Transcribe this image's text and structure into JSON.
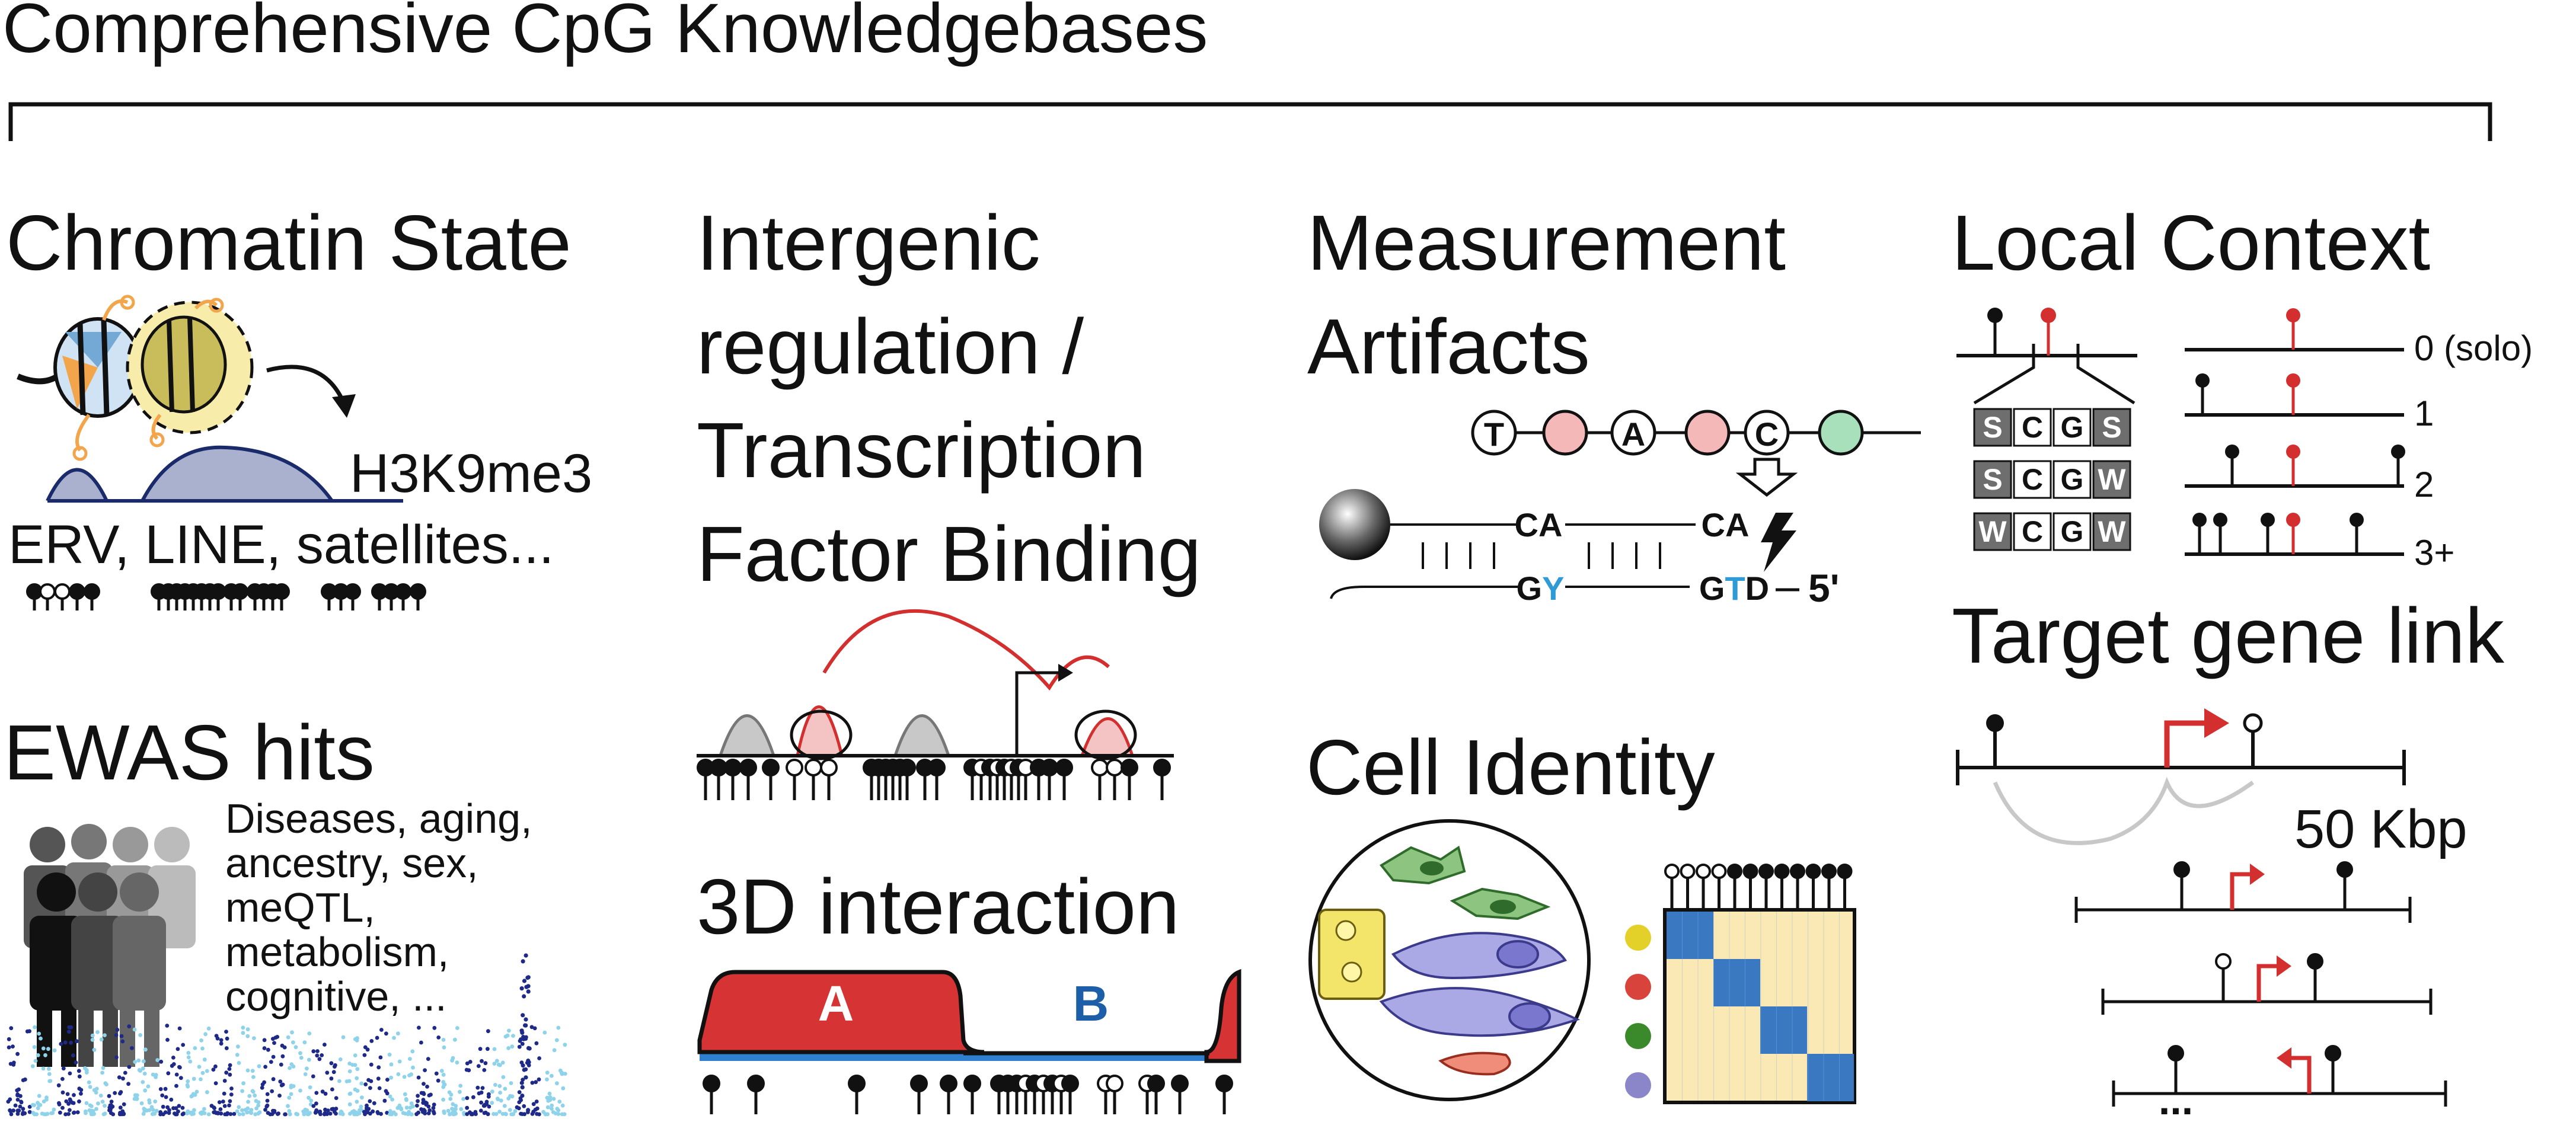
{
  "title": "Comprehensive CpG Knowledgebases",
  "sections": {
    "chromatin_state": {
      "title": "Chromatin State",
      "mark_label": "H3K9me3",
      "elements_label": "ERV, LINE, satellites..."
    },
    "ewas": {
      "title": "EWAS hits",
      "traits": [
        "Diseases, aging,",
        "ancestry, sex,",
        "meQTL,",
        "metabolism,",
        "cognitive, ..."
      ]
    },
    "intergenic": {
      "title_lines": [
        "Intergenic",
        "regulation /",
        "Transcription",
        "Factor Binding"
      ]
    },
    "interaction_3d": {
      "title": "3D interaction",
      "compartment_a": "A",
      "compartment_b": "B"
    },
    "measurement": {
      "title_lines": [
        "Measurement",
        "Artifacts"
      ],
      "bases": [
        "T",
        "A",
        "C"
      ],
      "top_strand": [
        "CA",
        "CA"
      ],
      "bottom_strand": [
        {
          "parts": [
            {
              "t": "G",
              "c": "#111111"
            },
            {
              "t": "Y",
              "c": "#2e9bd6"
            }
          ]
        },
        {
          "parts": [
            {
              "t": "G",
              "c": "#111111"
            },
            {
              "t": "T",
              "c": "#2e9bd6"
            },
            {
              "t": "D",
              "c": "#111111"
            }
          ]
        }
      ],
      "end_label": "5'"
    },
    "cell_identity": {
      "title": "Cell Identity",
      "dot_colors": [
        "#e3d12a",
        "#d8443b",
        "#3a8a2b",
        "#8a86c9"
      ]
    },
    "local_context": {
      "title": "Local Context",
      "motifs": [
        [
          "S",
          "C",
          "G",
          "S"
        ],
        [
          "S",
          "C",
          "G",
          "W"
        ],
        [
          "W",
          "C",
          "G",
          "W"
        ]
      ],
      "density_labels": [
        "0 (solo)",
        "1",
        "2",
        "3+"
      ]
    },
    "target_gene": {
      "title": "Target gene link",
      "distance": "50 Kbp",
      "more": "..."
    }
  },
  "colors": {
    "red": "#d32f2f",
    "peak_red_fill": "#f4c4c4",
    "peak_gray": "#b7b7b7",
    "dome": "#a9b1cf",
    "blue_text": "#1c5fa8",
    "matrix_bg": "#fbe9b5",
    "matrix_diag": "#3a78c2",
    "lollipop": "#111111"
  }
}
